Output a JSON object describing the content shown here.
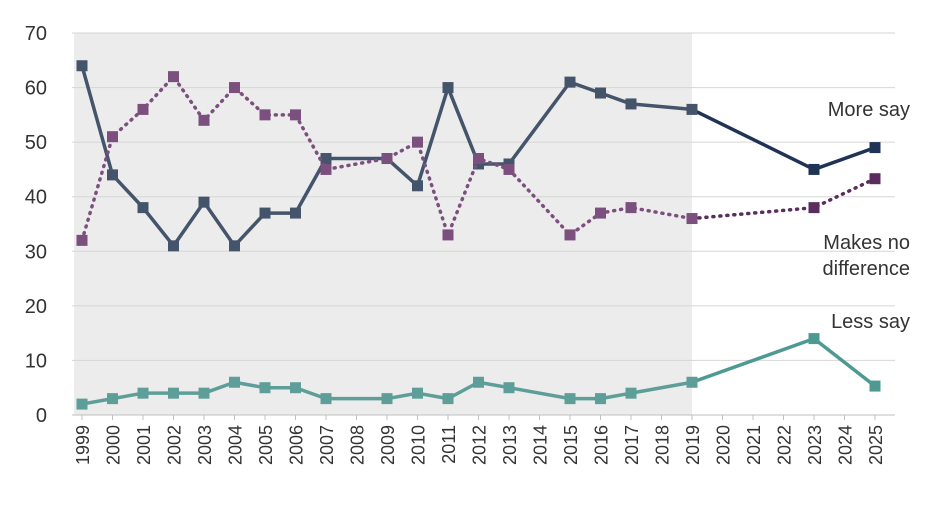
{
  "chart_data": {
    "type": "line",
    "title": "",
    "xlabel": "",
    "ylabel": "",
    "ylim": [
      0,
      70
    ],
    "yticks": [
      "0",
      "10",
      "20",
      "30",
      "40",
      "50",
      "60",
      "70"
    ],
    "x": [
      "1999",
      "2000",
      "2001",
      "2002",
      "2003",
      "2004",
      "2005",
      "2006",
      "2007",
      "2008",
      "2009",
      "2010",
      "2011",
      "2012",
      "2013",
      "2014",
      "2015",
      "2016",
      "2017",
      "2018",
      "2019",
      "2020",
      "2021",
      "2022",
      "2023",
      "2024",
      "2025"
    ],
    "shaded_range": [
      "1999",
      "2019"
    ],
    "grid": true,
    "legend": "inline labels at right",
    "series": [
      {
        "name": "More say",
        "color": "#44546a",
        "later_color": "#1f3354",
        "style": "solid",
        "points": [
          [
            1999,
            64
          ],
          [
            2000,
            44
          ],
          [
            2001,
            38
          ],
          [
            2002,
            31
          ],
          [
            2003,
            39
          ],
          [
            2004,
            31
          ],
          [
            2005,
            37
          ],
          [
            2006,
            37
          ],
          [
            2007,
            47
          ],
          [
            2009,
            47
          ],
          [
            2010,
            42
          ],
          [
            2011,
            60
          ],
          [
            2012,
            46
          ],
          [
            2013,
            46
          ],
          [
            2015,
            61
          ],
          [
            2016,
            59
          ],
          [
            2017,
            57
          ],
          [
            2019,
            56
          ],
          [
            2023,
            45
          ],
          [
            2025,
            49
          ]
        ]
      },
      {
        "name": "Makes no difference",
        "color": "#7b4f7e",
        "later_color": "#5a2d5e",
        "style": "dotted",
        "points": [
          [
            1999,
            32
          ],
          [
            2000,
            51
          ],
          [
            2001,
            56
          ],
          [
            2002,
            62
          ],
          [
            2003,
            54
          ],
          [
            2004,
            60
          ],
          [
            2005,
            55
          ],
          [
            2006,
            55
          ],
          [
            2007,
            45
          ],
          [
            2009,
            47
          ],
          [
            2010,
            50
          ],
          [
            2011,
            33
          ],
          [
            2012,
            47
          ],
          [
            2013,
            45
          ],
          [
            2015,
            33
          ],
          [
            2016,
            37
          ],
          [
            2017,
            38
          ],
          [
            2019,
            36
          ],
          [
            2023,
            38
          ],
          [
            2025,
            43.3
          ]
        ]
      },
      {
        "name": "Less say",
        "color": "#5e9e98",
        "later_color": "#4e9a93",
        "style": "solid",
        "points": [
          [
            1999,
            2
          ],
          [
            2000,
            3
          ],
          [
            2001,
            4
          ],
          [
            2002,
            4
          ],
          [
            2003,
            4
          ],
          [
            2004,
            6
          ],
          [
            2005,
            5
          ],
          [
            2006,
            5
          ],
          [
            2007,
            3
          ],
          [
            2009,
            3
          ],
          [
            2010,
            4
          ],
          [
            2011,
            3
          ],
          [
            2012,
            6
          ],
          [
            2013,
            5
          ],
          [
            2015,
            3
          ],
          [
            2016,
            3
          ],
          [
            2017,
            4
          ],
          [
            2019,
            6
          ],
          [
            2023,
            14
          ],
          [
            2025,
            5.3
          ]
        ]
      }
    ],
    "labels": {
      "more_say": "More say",
      "no_difference_line1": "Makes no",
      "no_difference_line2": "difference",
      "less_say": "Less say"
    }
  }
}
